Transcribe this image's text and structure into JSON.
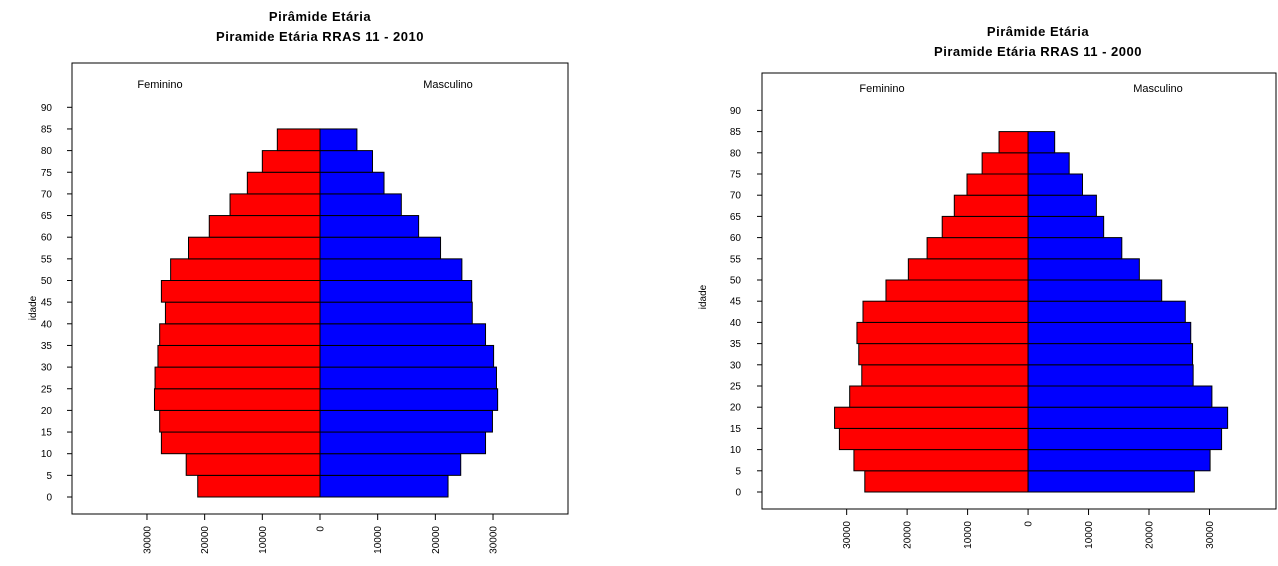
{
  "chart_data": [
    {
      "type": "bar",
      "orientation": "horizontal",
      "title": "Pirâmide Etária",
      "subtitle": "Piramide Etária RRAS 11 - 2010",
      "ylabel": "idade",
      "xlabel": "",
      "left_label": "Feminino",
      "right_label": "Masculino",
      "categories": [
        0,
        5,
        10,
        15,
        20,
        25,
        30,
        35,
        40,
        45,
        50,
        55,
        60,
        65,
        70,
        75,
        80
      ],
      "y_ticks": [
        0,
        5,
        10,
        15,
        20,
        25,
        30,
        35,
        40,
        45,
        50,
        55,
        60,
        65,
        70,
        75,
        80,
        85,
        90
      ],
      "x_tick_labels": [
        "30000",
        "20000",
        "10000",
        "0",
        "10000",
        "20000",
        "30000"
      ],
      "xlim": [
        -43000,
        43000
      ],
      "series": [
        {
          "name": "Feminino",
          "color": "#ff0000",
          "values": [
            21200,
            23200,
            27500,
            27800,
            28700,
            28600,
            28100,
            27800,
            26800,
            27500,
            25900,
            22800,
            19200,
            15600,
            12600,
            10000,
            7400
          ]
        },
        {
          "name": "Masculino",
          "color": "#0000ff",
          "values": [
            22200,
            24400,
            28700,
            29900,
            30800,
            30600,
            30100,
            28700,
            26400,
            26300,
            24600,
            20900,
            17100,
            14100,
            11100,
            9100,
            6400
          ]
        }
      ],
      "last_female_top": 8000,
      "grid": false
    },
    {
      "type": "bar",
      "orientation": "horizontal",
      "title": "Pirâmide Etária",
      "subtitle": "Piramide Etária RRAS 11 - 2000",
      "ylabel": "idade",
      "xlabel": "",
      "left_label": "Feminino",
      "right_label": "Masculino",
      "categories": [
        0,
        5,
        10,
        15,
        20,
        25,
        30,
        35,
        40,
        45,
        50,
        55,
        60,
        65,
        70,
        75,
        80
      ],
      "y_ticks": [
        0,
        5,
        10,
        15,
        20,
        25,
        30,
        35,
        40,
        45,
        50,
        55,
        60,
        65,
        70,
        75,
        80,
        85,
        90
      ],
      "x_tick_labels": [
        "30000",
        "20000",
        "10000",
        "0",
        "10000",
        "20000",
        "30000"
      ],
      "xlim": [
        -44000,
        41000
      ],
      "series": [
        {
          "name": "Feminino",
          "color": "#ff0000",
          "values": [
            27000,
            28800,
            31200,
            32000,
            29500,
            27500,
            28000,
            28300,
            27300,
            23500,
            19800,
            16700,
            14200,
            12200,
            10100,
            7600,
            4800
          ]
        },
        {
          "name": "Masculino",
          "color": "#0000ff",
          "values": [
            27500,
            30100,
            32000,
            33000,
            30400,
            27300,
            27200,
            26900,
            26000,
            22100,
            18400,
            15500,
            12500,
            11300,
            9000,
            6800,
            4400
          ]
        }
      ],
      "grid": false
    }
  ]
}
